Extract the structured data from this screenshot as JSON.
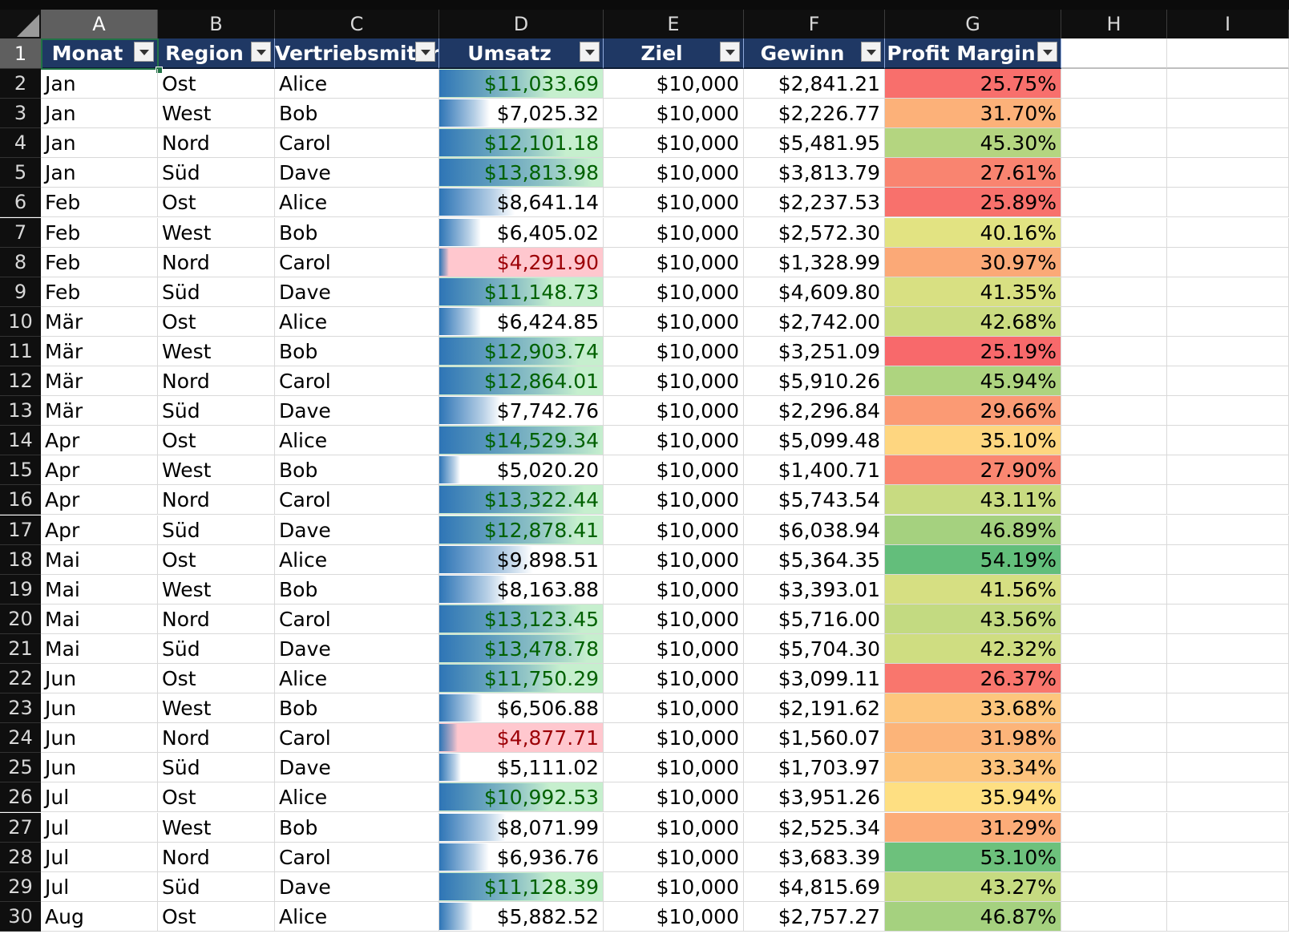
{
  "sheet": {
    "columns": [
      "A",
      "B",
      "C",
      "D",
      "E",
      "F",
      "G",
      "H",
      "I"
    ],
    "selected_column": "A",
    "selected_row": "1",
    "header_row": {
      "row_number": "1",
      "cells": [
        "Monat",
        "Region",
        "Vertriebsmitarbeiter",
        "Umsatz",
        "Ziel",
        "Gewinn",
        "Profit Margin"
      ]
    },
    "data_bar_color": "#2e75b6",
    "colors": {
      "header_fill": "#1f3864",
      "above_target_font": "#006100",
      "above_target_fill": "#c6efce",
      "below_target_font": "#9c0006",
      "below_target_fill": "#ffc7ce"
    },
    "rows": [
      {
        "n": "2",
        "month": "Jan",
        "region": "Ost",
        "rep": "Alice",
        "sales": "$11,033.69",
        "sales_value": 11033.69,
        "target": "$10,000",
        "profit": "$2,841.21",
        "margin": "25.75%",
        "margin_value": 25.75
      },
      {
        "n": "3",
        "month": "Jan",
        "region": "West",
        "rep": "Bob",
        "sales": "$7,025.32",
        "sales_value": 7025.32,
        "target": "$10,000",
        "profit": "$2,226.77",
        "margin": "31.70%",
        "margin_value": 31.7
      },
      {
        "n": "4",
        "month": "Jan",
        "region": "Nord",
        "rep": "Carol",
        "sales": "$12,101.18",
        "sales_value": 12101.18,
        "target": "$10,000",
        "profit": "$5,481.95",
        "margin": "45.30%",
        "margin_value": 45.3
      },
      {
        "n": "5",
        "month": "Jan",
        "region": "Süd",
        "rep": "Dave",
        "sales": "$13,813.98",
        "sales_value": 13813.98,
        "target": "$10,000",
        "profit": "$3,813.79",
        "margin": "27.61%",
        "margin_value": 27.61
      },
      {
        "n": "6",
        "month": "Feb",
        "region": "Ost",
        "rep": "Alice",
        "sales": "$8,641.14",
        "sales_value": 8641.14,
        "target": "$10,000",
        "profit": "$2,237.53",
        "margin": "25.89%",
        "margin_value": 25.89
      },
      {
        "n": "7",
        "month": "Feb",
        "region": "West",
        "rep": "Bob",
        "sales": "$6,405.02",
        "sales_value": 6405.02,
        "target": "$10,000",
        "profit": "$2,572.30",
        "margin": "40.16%",
        "margin_value": 40.16
      },
      {
        "n": "8",
        "month": "Feb",
        "region": "Nord",
        "rep": "Carol",
        "sales": "$4,291.90",
        "sales_value": 4291.9,
        "target": "$10,000",
        "profit": "$1,328.99",
        "margin": "30.97%",
        "margin_value": 30.97
      },
      {
        "n": "9",
        "month": "Feb",
        "region": "Süd",
        "rep": "Dave",
        "sales": "$11,148.73",
        "sales_value": 11148.73,
        "target": "$10,000",
        "profit": "$4,609.80",
        "margin": "41.35%",
        "margin_value": 41.35
      },
      {
        "n": "10",
        "month": "Mär",
        "region": "Ost",
        "rep": "Alice",
        "sales": "$6,424.85",
        "sales_value": 6424.85,
        "target": "$10,000",
        "profit": "$2,742.00",
        "margin": "42.68%",
        "margin_value": 42.68
      },
      {
        "n": "11",
        "month": "Mär",
        "region": "West",
        "rep": "Bob",
        "sales": "$12,903.74",
        "sales_value": 12903.74,
        "target": "$10,000",
        "profit": "$3,251.09",
        "margin": "25.19%",
        "margin_value": 25.19
      },
      {
        "n": "12",
        "month": "Mär",
        "region": "Nord",
        "rep": "Carol",
        "sales": "$12,864.01",
        "sales_value": 12864.01,
        "target": "$10,000",
        "profit": "$5,910.26",
        "margin": "45.94%",
        "margin_value": 45.94
      },
      {
        "n": "13",
        "month": "Mär",
        "region": "Süd",
        "rep": "Dave",
        "sales": "$7,742.76",
        "sales_value": 7742.76,
        "target": "$10,000",
        "profit": "$2,296.84",
        "margin": "29.66%",
        "margin_value": 29.66
      },
      {
        "n": "14",
        "month": "Apr",
        "region": "Ost",
        "rep": "Alice",
        "sales": "$14,529.34",
        "sales_value": 14529.34,
        "target": "$10,000",
        "profit": "$5,099.48",
        "margin": "35.10%",
        "margin_value": 35.1
      },
      {
        "n": "15",
        "month": "Apr",
        "region": "West",
        "rep": "Bob",
        "sales": "$5,020.20",
        "sales_value": 5020.2,
        "target": "$10,000",
        "profit": "$1,400.71",
        "margin": "27.90%",
        "margin_value": 27.9
      },
      {
        "n": "16",
        "month": "Apr",
        "region": "Nord",
        "rep": "Carol",
        "sales": "$13,322.44",
        "sales_value": 13322.44,
        "target": "$10,000",
        "profit": "$5,743.54",
        "margin": "43.11%",
        "margin_value": 43.11
      },
      {
        "n": "17",
        "month": "Apr",
        "region": "Süd",
        "rep": "Dave",
        "sales": "$12,878.41",
        "sales_value": 12878.41,
        "target": "$10,000",
        "profit": "$6,038.94",
        "margin": "46.89%",
        "margin_value": 46.89
      },
      {
        "n": "18",
        "month": "Mai",
        "region": "Ost",
        "rep": "Alice",
        "sales": "$9,898.51",
        "sales_value": 9898.51,
        "target": "$10,000",
        "profit": "$5,364.35",
        "margin": "54.19%",
        "margin_value": 54.19
      },
      {
        "n": "19",
        "month": "Mai",
        "region": "West",
        "rep": "Bob",
        "sales": "$8,163.88",
        "sales_value": 8163.88,
        "target": "$10,000",
        "profit": "$3,393.01",
        "margin": "41.56%",
        "margin_value": 41.56
      },
      {
        "n": "20",
        "month": "Mai",
        "region": "Nord",
        "rep": "Carol",
        "sales": "$13,123.45",
        "sales_value": 13123.45,
        "target": "$10,000",
        "profit": "$5,716.00",
        "margin": "43.56%",
        "margin_value": 43.56
      },
      {
        "n": "21",
        "month": "Mai",
        "region": "Süd",
        "rep": "Dave",
        "sales": "$13,478.78",
        "sales_value": 13478.78,
        "target": "$10,000",
        "profit": "$5,704.30",
        "margin": "42.32%",
        "margin_value": 42.32
      },
      {
        "n": "22",
        "month": "Jun",
        "region": "Ost",
        "rep": "Alice",
        "sales": "$11,750.29",
        "sales_value": 11750.29,
        "target": "$10,000",
        "profit": "$3,099.11",
        "margin": "26.37%",
        "margin_value": 26.37
      },
      {
        "n": "23",
        "month": "Jun",
        "region": "West",
        "rep": "Bob",
        "sales": "$6,506.88",
        "sales_value": 6506.88,
        "target": "$10,000",
        "profit": "$2,191.62",
        "margin": "33.68%",
        "margin_value": 33.68
      },
      {
        "n": "24",
        "month": "Jun",
        "region": "Nord",
        "rep": "Carol",
        "sales": "$4,877.71",
        "sales_value": 4877.71,
        "target": "$10,000",
        "profit": "$1,560.07",
        "margin": "31.98%",
        "margin_value": 31.98
      },
      {
        "n": "25",
        "month": "Jun",
        "region": "Süd",
        "rep": "Dave",
        "sales": "$5,111.02",
        "sales_value": 5111.02,
        "target": "$10,000",
        "profit": "$1,703.97",
        "margin": "33.34%",
        "margin_value": 33.34
      },
      {
        "n": "26",
        "month": "Jul",
        "region": "Ost",
        "rep": "Alice",
        "sales": "$10,992.53",
        "sales_value": 10992.53,
        "target": "$10,000",
        "profit": "$3,951.26",
        "margin": "35.94%",
        "margin_value": 35.94
      },
      {
        "n": "27",
        "month": "Jul",
        "region": "West",
        "rep": "Bob",
        "sales": "$8,071.99",
        "sales_value": 8071.99,
        "target": "$10,000",
        "profit": "$2,525.34",
        "margin": "31.29%",
        "margin_value": 31.29
      },
      {
        "n": "28",
        "month": "Jul",
        "region": "Nord",
        "rep": "Carol",
        "sales": "$6,936.76",
        "sales_value": 6936.76,
        "target": "$10,000",
        "profit": "$3,683.39",
        "margin": "53.10%",
        "margin_value": 53.1
      },
      {
        "n": "29",
        "month": "Jul",
        "region": "Süd",
        "rep": "Dave",
        "sales": "$11,128.39",
        "sales_value": 11128.39,
        "target": "$10,000",
        "profit": "$4,815.69",
        "margin": "43.27%",
        "margin_value": 43.27
      },
      {
        "n": "30",
        "month": "Aug",
        "region": "Ost",
        "rep": "Alice",
        "sales": "$5,882.52",
        "sales_value": 5882.52,
        "target": "$10,000",
        "profit": "$2,757.27",
        "margin": "46.87%",
        "margin_value": 46.87
      }
    ]
  }
}
